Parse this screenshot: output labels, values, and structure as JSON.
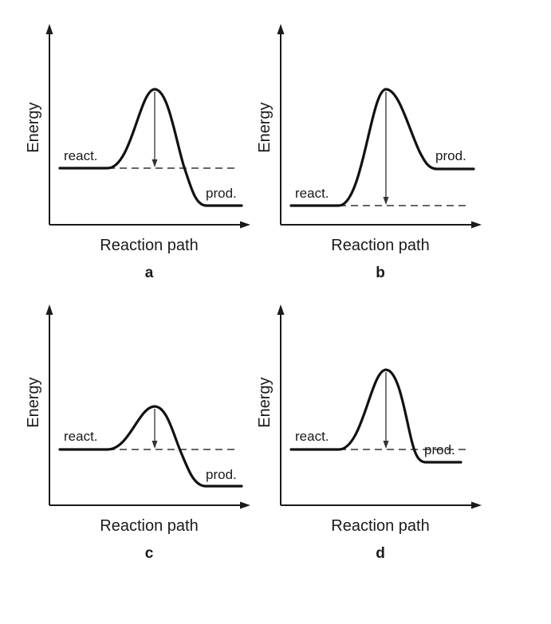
{
  "panels": [
    {
      "letter": "a",
      "ylabel": "Energy",
      "xlabel": "Reaction path",
      "reactant_label": "react.",
      "product_label": "prod."
    },
    {
      "letter": "b",
      "ylabel": "Energy",
      "xlabel": "Reaction path",
      "reactant_label": "react.",
      "product_label": "prod."
    },
    {
      "letter": "c",
      "ylabel": "Energy",
      "xlabel": "Reaction path",
      "reactant_label": "react.",
      "product_label": "prod."
    },
    {
      "letter": "d",
      "ylabel": "Energy",
      "xlabel": "Reaction path",
      "reactant_label": "react.",
      "product_label": "prod."
    }
  ],
  "colors": {
    "ink": "#111111",
    "background": "#ffffff"
  }
}
